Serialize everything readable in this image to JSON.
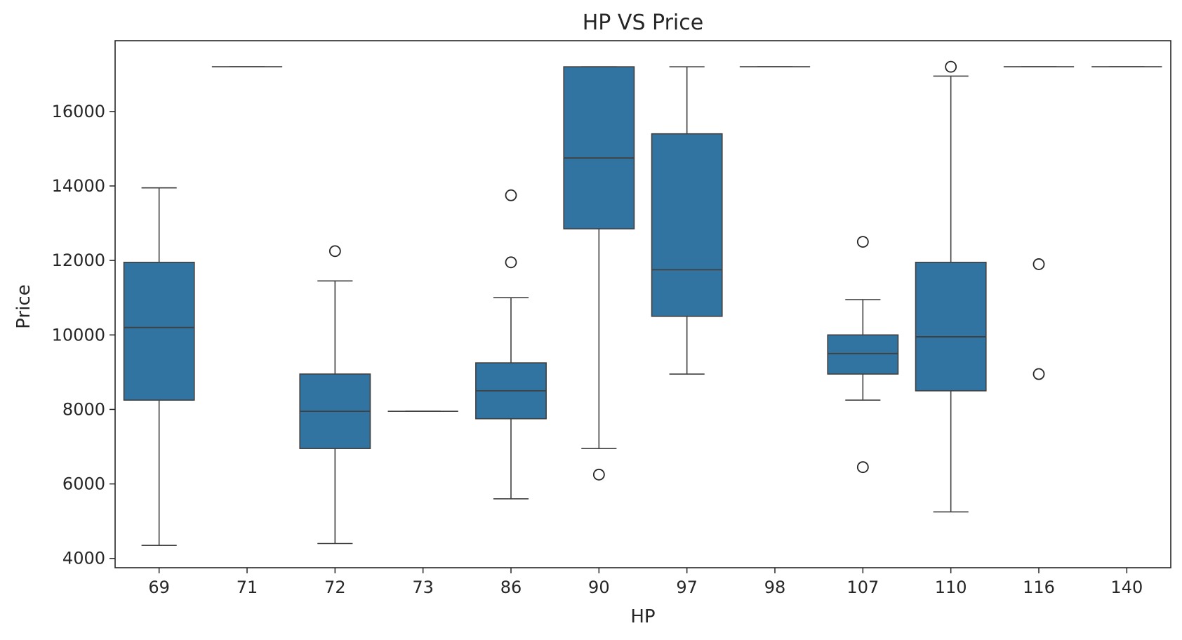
{
  "chart_data": {
    "type": "box",
    "title": "HP VS Price",
    "xlabel": "HP",
    "ylabel": "Price",
    "categories": [
      "69",
      "71",
      "72",
      "73",
      "86",
      "90",
      "97",
      "98",
      "107",
      "110",
      "116",
      "140"
    ],
    "y_ticks": [
      4000,
      6000,
      8000,
      10000,
      12000,
      14000,
      16000
    ],
    "y_tick_labels": [
      "4000",
      "6000",
      "8000",
      "10000",
      "12000",
      "14000",
      "16000"
    ],
    "ylim": [
      3750,
      17900
    ],
    "grid": false,
    "legend": "none",
    "box_color": "#3274a1",
    "line_color": "#404040",
    "boxes": [
      {
        "category": "69",
        "whisker_low": 4350,
        "q1": 8250,
        "median": 10200,
        "q3": 11950,
        "whisker_high": 13950,
        "outliers": []
      },
      {
        "category": "71",
        "whisker_low": 17200,
        "q1": 17200,
        "median": 17200,
        "q3": 17200,
        "whisker_high": 17200,
        "outliers": []
      },
      {
        "category": "72",
        "whisker_low": 4400,
        "q1": 6950,
        "median": 7950,
        "q3": 8950,
        "whisker_high": 11450,
        "outliers": [
          12250
        ]
      },
      {
        "category": "73",
        "whisker_low": 7950,
        "q1": 7950,
        "median": 7950,
        "q3": 7950,
        "whisker_high": 7950,
        "outliers": []
      },
      {
        "category": "86",
        "whisker_low": 5600,
        "q1": 7750,
        "median": 8500,
        "q3": 9250,
        "whisker_high": 11000,
        "outliers": [
          11950,
          13750
        ]
      },
      {
        "category": "90",
        "whisker_low": 6950,
        "q1": 12850,
        "median": 14750,
        "q3": 17200,
        "whisker_high": 17200,
        "outliers": [
          6250
        ]
      },
      {
        "category": "97",
        "whisker_low": 8950,
        "q1": 10500,
        "median": 11750,
        "q3": 15400,
        "whisker_high": 17200,
        "outliers": []
      },
      {
        "category": "98",
        "whisker_low": 17200,
        "q1": 17200,
        "median": 17200,
        "q3": 17200,
        "whisker_high": 17200,
        "outliers": []
      },
      {
        "category": "107",
        "whisker_low": 8250,
        "q1": 8950,
        "median": 9500,
        "q3": 10000,
        "whisker_high": 10950,
        "outliers": [
          6450,
          12500
        ]
      },
      {
        "category": "110",
        "whisker_low": 5250,
        "q1": 8500,
        "median": 9950,
        "q3": 11950,
        "whisker_high": 16950,
        "outliers": [
          17200
        ]
      },
      {
        "category": "116",
        "whisker_low": 17200,
        "q1": 17200,
        "median": 17200,
        "q3": 17200,
        "whisker_high": 17200,
        "outliers": [
          8950,
          11900
        ]
      },
      {
        "category": "140",
        "whisker_low": 17200,
        "q1": 17200,
        "median": 17200,
        "q3": 17200,
        "whisker_high": 17200,
        "outliers": []
      }
    ]
  }
}
